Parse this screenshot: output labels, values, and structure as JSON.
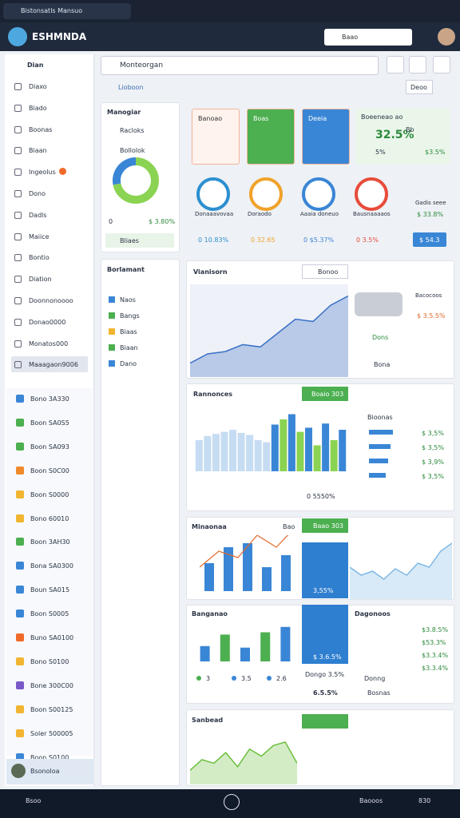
{
  "window": {
    "tab": "Bistonsatls Mansuo"
  },
  "header": {
    "brand": "ESHMNDA",
    "search": "Baao"
  },
  "sidebar": {
    "title": "Dian",
    "nav": [
      "Diaxo",
      "Biado",
      "Boonas",
      "Biaan",
      "Ingeolus",
      "Dono",
      "Dadls",
      "Maiice",
      "Bontio",
      "Diation",
      "Doonnonoooo",
      "Donao0000",
      "Monatos000",
      "Maaagaon9006"
    ],
    "accounts": [
      "Bono 3A330",
      "Boon SA0S5",
      "Boon SA093",
      "Boon S0C00",
      "Boon S0000",
      "Bono 60010",
      "Boon 3AH30",
      "Bona SA0300",
      "Boun SA015",
      "Boon S0005",
      "Buno SA0100",
      "Bono S0100",
      "Bone 300C00",
      "Boon S00125",
      "Soler 500005",
      "Boon S0100"
    ],
    "user": "Bsonoloa"
  },
  "toolbar": {
    "search": "Monteorgan",
    "breadcrumb": "Lioboon",
    "button": "Deoo"
  },
  "manager": {
    "title": "Manogiar",
    "items": [
      "Racloks",
      "Bollolok"
    ],
    "donut": [
      72,
      28
    ],
    "stats": [
      "0",
      "$ 3.80%"
    ],
    "button": "Bliaes"
  },
  "documents": {
    "title": "Borlamant",
    "items": [
      "Naos",
      "Bangs",
      "Biaas",
      "Biaan",
      "Dano"
    ]
  },
  "kpi": {
    "cards": [
      "Banoao",
      "Boas",
      "Deeia"
    ],
    "summary": {
      "title": "Boeeneao ao",
      "value": "32.5%",
      "unit": "Bb",
      "a": "5%",
      "b": "$3.5%"
    }
  },
  "gauges": [
    {
      "label": "Donaaavovaa",
      "value": "0 10.83%"
    },
    {
      "label": "Doraodo",
      "value": "0 32.65"
    },
    {
      "label": "Aaaia doneuo",
      "value": "0 $5.37%"
    },
    {
      "label": "Bausnaaaaos",
      "value": "0 3.5%"
    }
  ],
  "gauge_side": {
    "label": "Gadis seee",
    "value": "$ 33.8%",
    "button": "$ 54.3"
  },
  "traffic": {
    "title": "Vianisorn",
    "button": "Bonoo",
    "series": [
      12,
      20,
      22,
      28,
      26,
      38,
      50,
      48,
      62,
      70
    ],
    "legend": [
      "Bacocoos",
      "$ 3.5.5%"
    ],
    "action": "Dons",
    "note": "Bona"
  },
  "ranking": {
    "title": "Rannonces",
    "button": "Boaio 303",
    "bars": [
      30,
      34,
      36,
      38,
      40,
      37,
      35,
      30,
      28,
      45,
      50,
      55,
      38,
      42,
      25,
      46,
      30,
      40
    ],
    "list_title": "Bioonas",
    "rows": [
      "$ 3,5%",
      "$ 3,5%",
      "$ 3,9%",
      "$ 3,5%"
    ],
    "footer": "0 5550%"
  },
  "monthly": {
    "title": "Minaonaa",
    "label": "Bao",
    "bars": [
      35,
      55,
      60,
      30,
      45
    ],
    "line": [
      30,
      50,
      42,
      70,
      55,
      80
    ],
    "button": "Baao 303",
    "block": "3,55%",
    "area": [
      40,
      30,
      35,
      25,
      38,
      30,
      45,
      40,
      60,
      70
    ]
  },
  "segments": {
    "title": "Banganao",
    "bars": [
      20,
      35,
      18,
      38,
      45
    ],
    "legend": [
      "3",
      "3.5",
      "2.6"
    ],
    "block": "$ 3.6.5%",
    "side": "Dongo 3.5%",
    "list_title": "Dagonoos",
    "rows": [
      "$3.8.5%",
      "$53.3%",
      "$3.3.4%",
      "$3.3.4%"
    ],
    "footer": [
      "Donng",
      "6.5.5%",
      "Bosnas"
    ]
  },
  "summary": {
    "title": "Sanbead",
    "area": [
      20,
      35,
      30,
      45,
      25,
      50,
      40,
      55,
      60,
      30
    ]
  },
  "taskbar": {
    "items": [
      "Bsoo",
      "Baooos",
      "830"
    ]
  }
}
